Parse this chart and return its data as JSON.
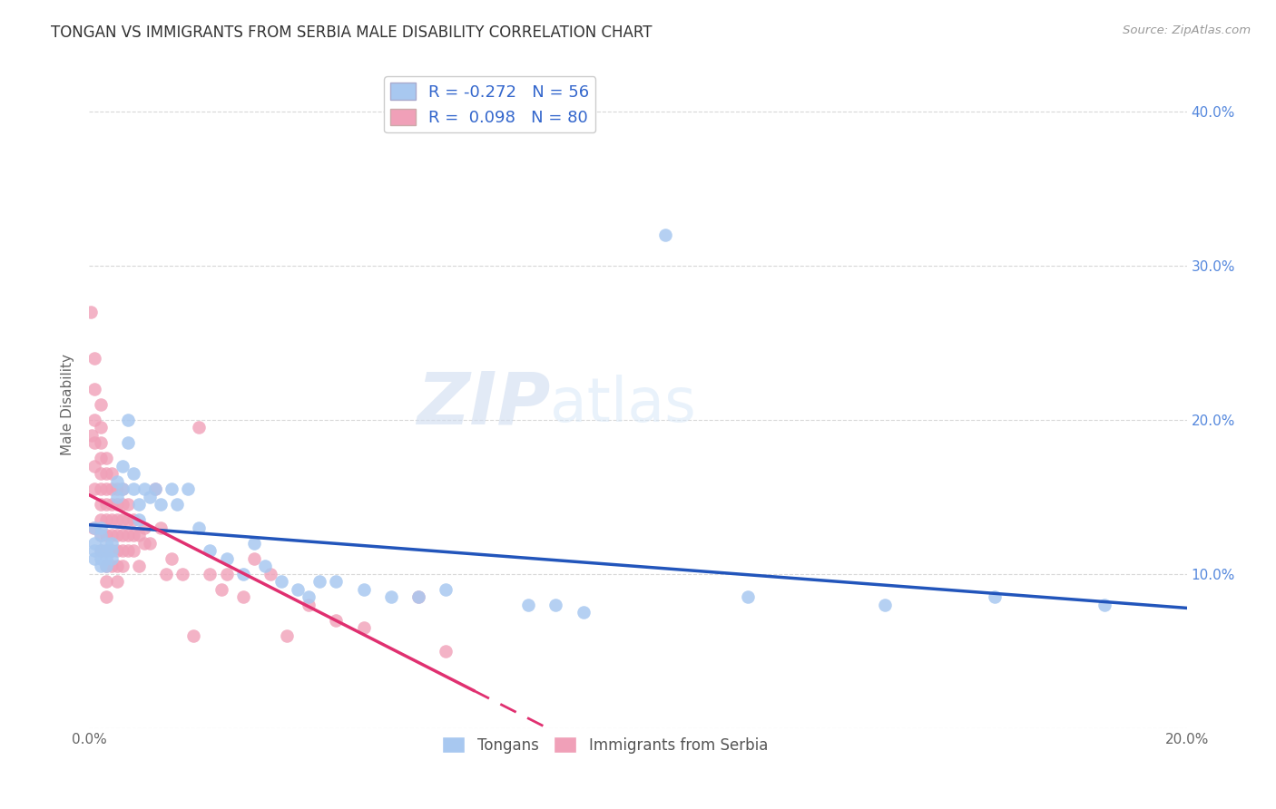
{
  "title": "TONGAN VS IMMIGRANTS FROM SERBIA MALE DISABILITY CORRELATION CHART",
  "source": "Source: ZipAtlas.com",
  "ylabel": "Male Disability",
  "xlim": [
    0.0,
    0.2
  ],
  "ylim": [
    0.0,
    0.42
  ],
  "background_color": "#ffffff",
  "grid_color": "#d8d8d8",
  "tongan_color": "#a8c8f0",
  "serbia_color": "#f0a0b8",
  "tongan_line_color": "#2255bb",
  "serbia_line_color": "#e03070",
  "legend_R_tongan": "-0.272",
  "legend_N_tongan": "56",
  "legend_R_serbia": "0.098",
  "legend_N_serbia": "80",
  "watermark_zip": "ZIP",
  "watermark_atlas": "atlas",
  "tongan_x": [
    0.001,
    0.001,
    0.001,
    0.001,
    0.002,
    0.002,
    0.002,
    0.002,
    0.002,
    0.003,
    0.003,
    0.003,
    0.003,
    0.004,
    0.004,
    0.004,
    0.005,
    0.005,
    0.006,
    0.006,
    0.007,
    0.007,
    0.008,
    0.008,
    0.009,
    0.009,
    0.01,
    0.011,
    0.012,
    0.013,
    0.015,
    0.016,
    0.018,
    0.02,
    0.022,
    0.025,
    0.028,
    0.03,
    0.032,
    0.035,
    0.038,
    0.04,
    0.042,
    0.045,
    0.05,
    0.055,
    0.06,
    0.065,
    0.08,
    0.085,
    0.09,
    0.105,
    0.12,
    0.145,
    0.165,
    0.185
  ],
  "tongan_y": [
    0.13,
    0.12,
    0.115,
    0.11,
    0.13,
    0.125,
    0.115,
    0.11,
    0.105,
    0.12,
    0.115,
    0.11,
    0.105,
    0.12,
    0.115,
    0.11,
    0.16,
    0.15,
    0.17,
    0.155,
    0.2,
    0.185,
    0.165,
    0.155,
    0.145,
    0.135,
    0.155,
    0.15,
    0.155,
    0.145,
    0.155,
    0.145,
    0.155,
    0.13,
    0.115,
    0.11,
    0.1,
    0.12,
    0.105,
    0.095,
    0.09,
    0.085,
    0.095,
    0.095,
    0.09,
    0.085,
    0.085,
    0.09,
    0.08,
    0.08,
    0.075,
    0.32,
    0.085,
    0.08,
    0.085,
    0.08
  ],
  "serbia_x": [
    0.0003,
    0.0005,
    0.0008,
    0.001,
    0.001,
    0.001,
    0.001,
    0.001,
    0.001,
    0.002,
    0.002,
    0.002,
    0.002,
    0.002,
    0.002,
    0.002,
    0.002,
    0.002,
    0.002,
    0.003,
    0.003,
    0.003,
    0.003,
    0.003,
    0.003,
    0.003,
    0.003,
    0.003,
    0.003,
    0.004,
    0.004,
    0.004,
    0.004,
    0.004,
    0.004,
    0.004,
    0.005,
    0.005,
    0.005,
    0.005,
    0.005,
    0.005,
    0.005,
    0.006,
    0.006,
    0.006,
    0.006,
    0.006,
    0.006,
    0.007,
    0.007,
    0.007,
    0.007,
    0.008,
    0.008,
    0.008,
    0.009,
    0.009,
    0.01,
    0.01,
    0.011,
    0.012,
    0.013,
    0.014,
    0.015,
    0.017,
    0.019,
    0.02,
    0.022,
    0.024,
    0.025,
    0.028,
    0.03,
    0.033,
    0.036,
    0.04,
    0.045,
    0.05,
    0.06,
    0.065
  ],
  "serbia_y": [
    0.27,
    0.19,
    0.13,
    0.24,
    0.22,
    0.2,
    0.185,
    0.17,
    0.155,
    0.21,
    0.195,
    0.185,
    0.175,
    0.165,
    0.155,
    0.145,
    0.135,
    0.125,
    0.115,
    0.175,
    0.165,
    0.155,
    0.145,
    0.135,
    0.125,
    0.115,
    0.105,
    0.095,
    0.085,
    0.165,
    0.155,
    0.145,
    0.135,
    0.125,
    0.115,
    0.105,
    0.155,
    0.145,
    0.135,
    0.125,
    0.115,
    0.105,
    0.095,
    0.155,
    0.145,
    0.135,
    0.125,
    0.115,
    0.105,
    0.145,
    0.135,
    0.125,
    0.115,
    0.135,
    0.125,
    0.115,
    0.125,
    0.105,
    0.13,
    0.12,
    0.12,
    0.155,
    0.13,
    0.1,
    0.11,
    0.1,
    0.06,
    0.195,
    0.1,
    0.09,
    0.1,
    0.085,
    0.11,
    0.1,
    0.06,
    0.08,
    0.07,
    0.065,
    0.085,
    0.05
  ]
}
